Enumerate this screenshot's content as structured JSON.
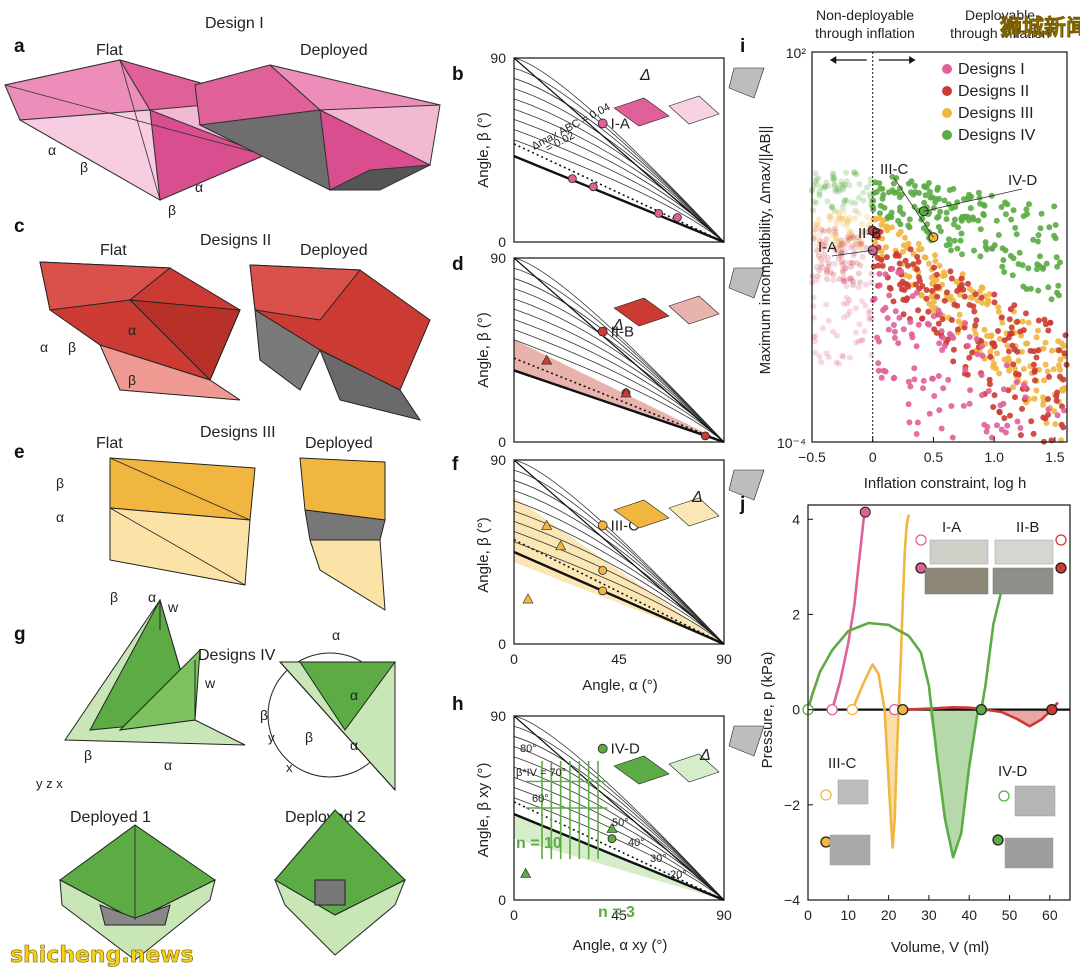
{
  "panels": {
    "a": {
      "letter": "a",
      "title": "Design I",
      "flat": "Flat",
      "deployed": "Deployed",
      "labels": [
        "α",
        "β",
        "β",
        "α"
      ]
    },
    "c": {
      "letter": "c",
      "title": "Designs II",
      "flat": "Flat",
      "deployed": "Deployed"
    },
    "e": {
      "letter": "e",
      "title": "Designs III",
      "flat": "Flat",
      "deployed": "Deployed"
    },
    "g": {
      "letter": "g",
      "title": "Designs IV",
      "deployed1": "Deployed 1",
      "deployed2": "Deployed 2",
      "wc": "w",
      "wi": "w"
    },
    "b": {
      "letter": "b",
      "marker": "I-A",
      "ylabel": "Angle, β (°)",
      "delta": "Δ",
      "contour1": "Δmax ABC = 0.04",
      "contour2": "= 0.02"
    },
    "d": {
      "letter": "d",
      "marker": "II-B",
      "ylabel": "Angle, β (°)",
      "delta": "Δ"
    },
    "f": {
      "letter": "f",
      "marker": "III-C",
      "ylabel": "Angle, β (°)",
      "xlabel": "Angle, α (°)",
      "delta": "Δ"
    },
    "h": {
      "letter": "h",
      "marker": "IV-D",
      "ylabel": "Angle, β xy (°)",
      "xlabel": "Angle, α xy (°)",
      "n10": "n = 10",
      "n3": "n = 3",
      "delta": "Δ",
      "angles": [
        "80°",
        "β*IV = 70°",
        "60°",
        "50°",
        "40°",
        "30°",
        "20°"
      ]
    },
    "i": {
      "letter": "i",
      "non_deployable": [
        "Non-deployable",
        "through inflation"
      ],
      "deployable": [
        "Deployable",
        "through inflation"
      ],
      "ylabel": "Maximum incompatibility, Δmax/||AB||",
      "xlabel": "Inflation constraint, log h",
      "annotations": [
        "I-A",
        "II-B",
        "III-C",
        "IV-D"
      ]
    },
    "j": {
      "letter": "j",
      "ylabel": "Pressure, p (kPa)",
      "xlabel": "Volume, V (ml)",
      "annotations": [
        "I-A",
        "II-B",
        "III-C",
        "IV-D"
      ]
    }
  },
  "watermarks": {
    "top": "狮城新闻",
    "bottom": "shicheng.news"
  },
  "colors": {
    "pink": "#e0609a",
    "pink_light": "#f3b9d3",
    "red": "#cc3b33",
    "red_light": "#ee9a92",
    "orange": "#f0b640",
    "orange_light": "#fbe2a6",
    "green": "#5cab45",
    "green_light": "#c8e6b6",
    "grey": "#8a8a8a"
  },
  "chart_data": [
    {
      "id": "b",
      "type": "line",
      "xlim": [
        0,
        90
      ],
      "ylim": [
        0,
        90
      ],
      "yticks": [
        "0",
        "90"
      ],
      "xticks": [],
      "markers": [
        {
          "name": "I-A",
          "x": 38,
          "y": 58
        }
      ],
      "points": [
        {
          "x": 25,
          "y": 31
        },
        {
          "x": 34,
          "y": 27
        },
        {
          "x": 62,
          "y": 14
        },
        {
          "x": 70,
          "y": 12
        }
      ]
    },
    {
      "id": "d",
      "type": "line",
      "xlim": [
        0,
        90
      ],
      "ylim": [
        0,
        90
      ],
      "yticks": [
        "0",
        "90"
      ],
      "xticks": [],
      "markers": [
        {
          "name": "II-B",
          "x": 38,
          "y": 54
        }
      ],
      "points": [
        {
          "x": 48,
          "y": 24
        },
        {
          "x": 82,
          "y": 3
        }
      ],
      "triangles": [
        {
          "x": 14,
          "y": 40
        },
        {
          "x": 48,
          "y": 24
        }
      ]
    },
    {
      "id": "f",
      "type": "line",
      "xlim": [
        0,
        90
      ],
      "ylim": [
        0,
        90
      ],
      "yticks": [
        "0",
        "90"
      ],
      "xticks": [
        "0",
        "45",
        "90"
      ],
      "markers": [
        {
          "name": "III-C",
          "x": 38,
          "y": 58
        }
      ],
      "points": [
        {
          "x": 38,
          "y": 36
        },
        {
          "x": 38,
          "y": 26
        }
      ],
      "triangles": [
        {
          "x": 14,
          "y": 58
        },
        {
          "x": 20,
          "y": 48
        },
        {
          "x": 6,
          "y": 22
        }
      ]
    },
    {
      "id": "h",
      "type": "line",
      "xlim": [
        0,
        90
      ],
      "ylim": [
        0,
        90
      ],
      "yticks": [
        "0",
        "90"
      ],
      "xticks": [
        "0",
        "45",
        "90"
      ],
      "markers": [
        {
          "name": "IV-D",
          "x": 38,
          "y": 74
        }
      ],
      "points": [
        {
          "x": 42,
          "y": 30
        }
      ],
      "triangles": [
        {
          "x": 42,
          "y": 35
        },
        {
          "x": 5,
          "y": 13
        }
      ]
    },
    {
      "id": "i",
      "type": "scatter",
      "xlim": [
        -0.5,
        1.6
      ],
      "ylim_log10": [
        -4,
        2
      ],
      "xticks": [
        "−0.5",
        "0",
        "0.5",
        "1.0",
        "1.5"
      ],
      "yticks": [
        "10²",
        "10⁻⁴"
      ],
      "series": [
        {
          "name": "Designs I",
          "color": "#e0609a"
        },
        {
          "name": "Designs II",
          "color": "#cc3b33"
        },
        {
          "name": "Designs III",
          "color": "#f0b640"
        },
        {
          "name": "Designs IV",
          "color": "#5cab45"
        }
      ],
      "highlight": [
        {
          "name": "I-A",
          "x": 0,
          "y": -1.05
        },
        {
          "name": "II-B",
          "x": 0,
          "y": -0.75
        },
        {
          "name": "III-C",
          "x": 0.5,
          "y": -0.85
        },
        {
          "name": "IV-D",
          "x": 0.42,
          "y": -0.45
        }
      ]
    },
    {
      "id": "j",
      "type": "line",
      "xlim": [
        0,
        65
      ],
      "ylim": [
        -4,
        4.3
      ],
      "xticks": [
        "0",
        "10",
        "20",
        "30",
        "40",
        "50",
        "60"
      ],
      "yticks": [
        "−4",
        "−2",
        "0",
        "2",
        "4"
      ],
      "series": [
        {
          "name": "I-A",
          "color": "#e0609a",
          "x": [
            6,
            8,
            10,
            11.5,
            12.5,
            13.3,
            13.8,
            14.2
          ],
          "y": [
            0,
            0.6,
            1.4,
            2.2,
            3.0,
            3.6,
            4.0,
            4.15
          ]
        },
        {
          "name": "II-B",
          "color": "#cc3b33",
          "x": [
            24,
            30,
            36,
            40,
            44,
            48,
            52,
            55,
            58,
            60.5,
            62
          ],
          "y": [
            0,
            0.02,
            0.05,
            0.04,
            0,
            -0.05,
            -0.2,
            -0.35,
            -0.2,
            0,
            0.15
          ]
        },
        {
          "name": "III-C",
          "color": "#f0b640",
          "x": [
            11,
            14,
            16,
            17.5,
            19,
            20,
            21,
            21.5,
            22,
            22.5,
            23,
            23.5,
            24,
            24.5,
            25
          ],
          "y": [
            0,
            0.6,
            0.95,
            0.75,
            0,
            -1.5,
            -2.9,
            -2.3,
            -1.0,
            0,
            1.0,
            2.2,
            3.3,
            3.9,
            4.1
          ]
        },
        {
          "name": "IV-D",
          "color": "#5cab45",
          "x": [
            0,
            1,
            3,
            6,
            10,
            15,
            20,
            25,
            28,
            30,
            32,
            34,
            36,
            38,
            40,
            42,
            43,
            44,
            46,
            48
          ],
          "y": [
            0,
            0.3,
            0.8,
            1.25,
            1.65,
            1.82,
            1.78,
            1.55,
            1.2,
            0.5,
            -1.0,
            -2.3,
            -3.1,
            -2.6,
            -1.2,
            -0.1,
            0,
            0.5,
            1.8,
            2.5
          ]
        }
      ],
      "zero_markers": [
        {
          "x": 0,
          "color": "#5cab45"
        },
        {
          "x": 6,
          "color": "#e0609a"
        },
        {
          "x": 11,
          "color": "#f0b640"
        },
        {
          "x": 21.5,
          "color": "#e0609a"
        },
        {
          "x": 23.5,
          "color": "#f0b640"
        },
        {
          "x": 43,
          "color": "#5cab45"
        },
        {
          "x": 60.5,
          "color": "#cc3b33"
        }
      ],
      "top_marker": {
        "x": 14.2,
        "y": 4.15,
        "color": "#e0609a"
      }
    }
  ]
}
